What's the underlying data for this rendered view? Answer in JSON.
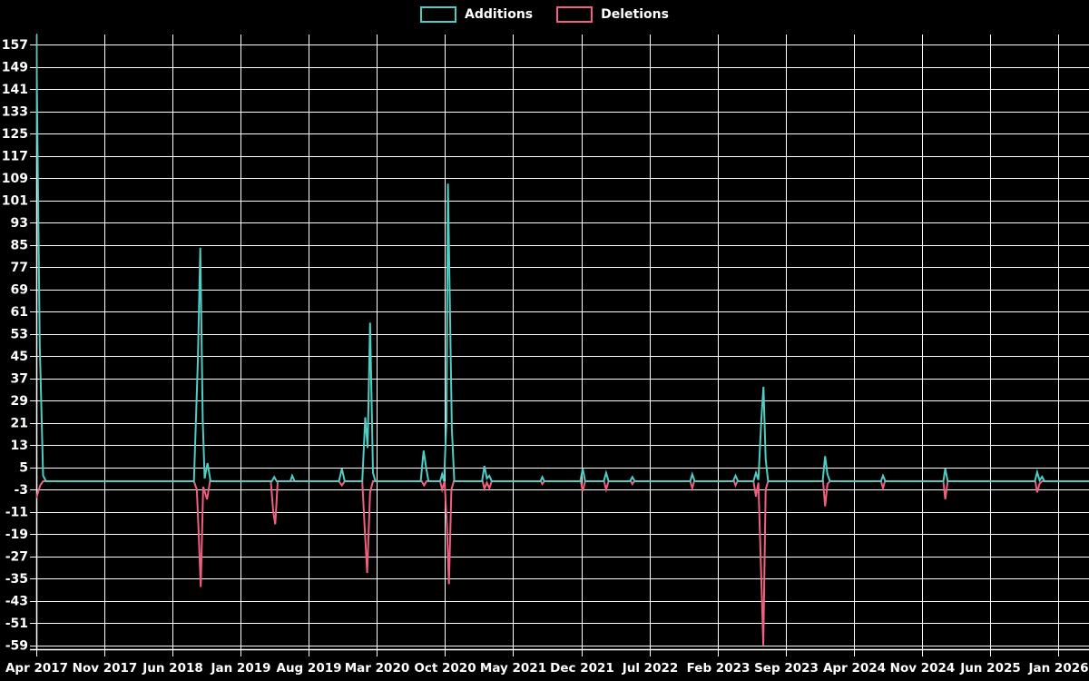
{
  "chart_data": {
    "type": "line",
    "title": "",
    "background_color": "#000000",
    "grid_color": "#ffffff",
    "text_color": "#ffffff",
    "legend_position": "top-center",
    "grid": true,
    "x_axis": {
      "tick_labels": [
        "Apr 2017",
        "Nov 2017",
        "Jun 2018",
        "Jan 2019",
        "Aug 2019",
        "Mar 2020",
        "Oct 2020",
        "May 2021",
        "Dec 2021",
        "Jul 2022",
        "Feb 2023",
        "Sep 2023",
        "Apr 2024",
        "Nov 2024",
        "Jun 2025",
        "Jan 2026"
      ],
      "months_per_tick": 7,
      "total_months": 105
    },
    "y_axis": {
      "tick_labels": [
        "157",
        "149",
        "141",
        "133",
        "125",
        "117",
        "109",
        "101",
        "93",
        "85",
        "77",
        "69",
        "61",
        "53",
        "45",
        "37",
        "29",
        "21",
        "13",
        "5",
        "-3",
        "-11",
        "-19",
        "-27",
        "-35",
        "-43",
        "-51",
        "-59"
      ],
      "tick_step": 8,
      "min": -59,
      "max": 157
    },
    "series": [
      {
        "name": "Additions",
        "color": "#4ECDC4",
        "points": [
          [
            0,
            161
          ],
          [
            0.35,
            49
          ],
          [
            0.7,
            2
          ],
          [
            1,
            0
          ],
          [
            16.2,
            0
          ],
          [
            16.6,
            43
          ],
          [
            16.85,
            84
          ],
          [
            17.1,
            22
          ],
          [
            17.3,
            1
          ],
          [
            17.6,
            6.5
          ],
          [
            17.9,
            0
          ],
          [
            24.2,
            0
          ],
          [
            24.45,
            1.5
          ],
          [
            24.7,
            0
          ],
          [
            26.1,
            0
          ],
          [
            26.3,
            2
          ],
          [
            26.55,
            0
          ],
          [
            31.1,
            0
          ],
          [
            31.4,
            4.5
          ],
          [
            31.7,
            0
          ],
          [
            33.5,
            0
          ],
          [
            33.8,
            23
          ],
          [
            34.05,
            12
          ],
          [
            34.3,
            57
          ],
          [
            34.6,
            3
          ],
          [
            34.85,
            0
          ],
          [
            39.5,
            0
          ],
          [
            39.8,
            11
          ],
          [
            40.05,
            5
          ],
          [
            40.3,
            0
          ],
          [
            41.5,
            0
          ],
          [
            41.7,
            2.5
          ],
          [
            41.9,
            0
          ],
          [
            42.15,
            22
          ],
          [
            42.3,
            107
          ],
          [
            42.5,
            62
          ],
          [
            42.7,
            19
          ],
          [
            42.95,
            0
          ],
          [
            45.8,
            0
          ],
          [
            46.05,
            5.5
          ],
          [
            46.3,
            1
          ],
          [
            46.55,
            2
          ],
          [
            46.8,
            0
          ],
          [
            51.8,
            0
          ],
          [
            52,
            1.5
          ],
          [
            52.2,
            0
          ],
          [
            55.9,
            0
          ],
          [
            56.15,
            4.5
          ],
          [
            56.4,
            0
          ],
          [
            58.3,
            0
          ],
          [
            58.55,
            3
          ],
          [
            58.8,
            0
          ],
          [
            61,
            0
          ],
          [
            61.25,
            1.5
          ],
          [
            61.5,
            0
          ],
          [
            67.2,
            0
          ],
          [
            67.4,
            2.5
          ],
          [
            67.65,
            0
          ],
          [
            71.6,
            0
          ],
          [
            71.85,
            2
          ],
          [
            72.1,
            0
          ],
          [
            73.7,
            0
          ],
          [
            73.95,
            3
          ],
          [
            74.2,
            0.5
          ],
          [
            74.5,
            22
          ],
          [
            74.72,
            34
          ],
          [
            74.95,
            8
          ],
          [
            75.2,
            0
          ],
          [
            80.8,
            0
          ],
          [
            81.05,
            9
          ],
          [
            81.3,
            2.5
          ],
          [
            81.55,
            0
          ],
          [
            86.8,
            0
          ],
          [
            87,
            2
          ],
          [
            87.25,
            0
          ],
          [
            93.2,
            0
          ],
          [
            93.4,
            4.5
          ],
          [
            93.65,
            0
          ],
          [
            102.6,
            0
          ],
          [
            102.85,
            3.3
          ],
          [
            103.1,
            0.3
          ],
          [
            103.35,
            1.6
          ],
          [
            103.6,
            0
          ],
          [
            108.2,
            0
          ]
        ]
      },
      {
        "name": "Deletions",
        "color": "#F0607E",
        "points": [
          [
            0,
            -6
          ],
          [
            0.4,
            -1.5
          ],
          [
            0.7,
            0
          ],
          [
            16.2,
            0
          ],
          [
            16.5,
            -3
          ],
          [
            16.7,
            -20
          ],
          [
            16.9,
            -38
          ],
          [
            17.15,
            -2
          ],
          [
            17.55,
            -6.5
          ],
          [
            17.85,
            0
          ],
          [
            24.1,
            0
          ],
          [
            24.35,
            -11
          ],
          [
            24.55,
            -15.5
          ],
          [
            24.8,
            0
          ],
          [
            31.1,
            0
          ],
          [
            31.4,
            -1.5
          ],
          [
            31.7,
            0
          ],
          [
            33.5,
            0
          ],
          [
            33.75,
            -17
          ],
          [
            34,
            -33
          ],
          [
            34.3,
            -4
          ],
          [
            34.6,
            0
          ],
          [
            39.6,
            0
          ],
          [
            39.85,
            -1.5
          ],
          [
            40.1,
            0
          ],
          [
            41.5,
            0
          ],
          [
            41.7,
            -3
          ],
          [
            41.95,
            0
          ],
          [
            42.2,
            -16
          ],
          [
            42.4,
            -37
          ],
          [
            42.65,
            -3
          ],
          [
            42.9,
            0
          ],
          [
            45.85,
            0
          ],
          [
            46.05,
            -2.7
          ],
          [
            46.3,
            -0.5
          ],
          [
            46.55,
            -2.5
          ],
          [
            46.8,
            0
          ],
          [
            51.85,
            0
          ],
          [
            52,
            -1
          ],
          [
            52.2,
            0
          ],
          [
            55.95,
            0
          ],
          [
            56.15,
            -3.5
          ],
          [
            56.4,
            0
          ],
          [
            58.35,
            0
          ],
          [
            58.55,
            -3
          ],
          [
            58.8,
            0
          ],
          [
            61.1,
            0
          ],
          [
            61.25,
            -1
          ],
          [
            61.45,
            0
          ],
          [
            67.2,
            0
          ],
          [
            67.4,
            -2.5
          ],
          [
            67.6,
            0
          ],
          [
            71.7,
            0
          ],
          [
            71.85,
            -1.5
          ],
          [
            72.05,
            0
          ],
          [
            73.7,
            0
          ],
          [
            73.95,
            -5.5
          ],
          [
            74.2,
            -0.5
          ],
          [
            74.5,
            -35
          ],
          [
            74.7,
            -59
          ],
          [
            74.95,
            -3
          ],
          [
            75.2,
            0
          ],
          [
            80.85,
            0
          ],
          [
            81.05,
            -9
          ],
          [
            81.3,
            -1
          ],
          [
            81.55,
            0
          ],
          [
            86.8,
            0
          ],
          [
            87,
            -2.5
          ],
          [
            87.2,
            0
          ],
          [
            93.2,
            0
          ],
          [
            93.4,
            -6.5
          ],
          [
            93.65,
            0
          ],
          [
            102.65,
            0
          ],
          [
            102.85,
            -4
          ],
          [
            103.1,
            -0.8
          ],
          [
            103.35,
            0
          ],
          [
            108.2,
            0
          ]
        ]
      }
    ]
  }
}
